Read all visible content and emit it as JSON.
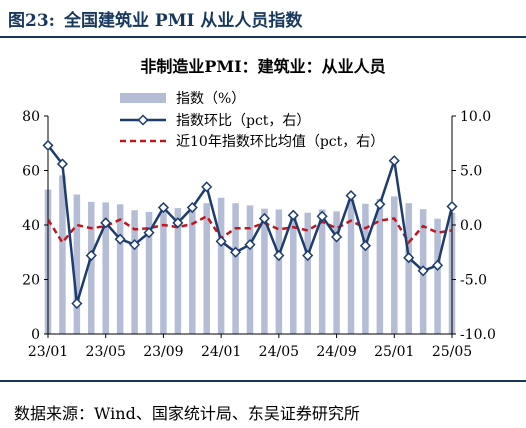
{
  "figure": {
    "number": "图23:",
    "title": "全国建筑业 PMI 从业人员指数",
    "source": "数据来源：Wind、国家统计局、东吴证券研究所"
  },
  "chart_data": {
    "type": "bar+line",
    "title": "非制造业PMI：建筑业：从业人员",
    "categories": [
      "23/01",
      "23/02",
      "23/03",
      "23/04",
      "23/05",
      "23/06",
      "23/07",
      "23/08",
      "23/09",
      "23/10",
      "23/11",
      "23/12",
      "24/01",
      "24/02",
      "24/03",
      "24/04",
      "24/05",
      "24/06",
      "24/07",
      "24/08",
      "24/09",
      "24/10",
      "24/11",
      "24/12",
      "25/01",
      "25/02",
      "25/03",
      "25/04",
      "25/05"
    ],
    "x_tick_labels": [
      "23/01",
      "23/05",
      "23/09",
      "24/01",
      "24/05",
      "24/09",
      "25/01",
      "25/05"
    ],
    "left_axis": {
      "range": [
        0,
        80
      ],
      "ticks": [
        "0",
        "20",
        "40",
        "60",
        "80"
      ]
    },
    "right_axis": {
      "range": [
        -10,
        10
      ],
      "ticks": [
        "-10.0",
        "-5.0",
        "0.0",
        "5.0",
        "10.0"
      ]
    },
    "series": [
      {
        "name": "指数（%）",
        "kind": "bar",
        "axis": "left",
        "color": "#b4bcd6",
        "values": [
          53.0,
          58.2,
          51.2,
          48.5,
          48.3,
          47.6,
          45.4,
          44.8,
          47.5,
          46.2,
          46.0,
          48.0,
          50.0,
          48.0,
          47.2,
          46.0,
          45.7,
          43.4,
          44.5,
          45.7,
          45.0,
          49.2,
          47.8,
          49.6,
          50.5,
          48.0,
          45.8,
          42.3,
          44.5
        ]
      },
      {
        "name": "指数环比（pct，右）",
        "kind": "line",
        "axis": "right",
        "color": "#1f3c6e",
        "values": [
          7.3,
          5.6,
          -7.2,
          -2.8,
          0.2,
          -1.3,
          -1.8,
          -0.7,
          1.6,
          0.2,
          1.6,
          3.5,
          -1.5,
          -2.5,
          -1.8,
          0.6,
          -2.8,
          0.9,
          -2.8,
          0.8,
          -1.1,
          2.7,
          -1.9,
          1.9,
          5.9,
          -3.0,
          -4.2,
          -3.7,
          1.7
        ]
      },
      {
        "name": "近10年指数环比均值（pct，右）",
        "kind": "dashed-line",
        "axis": "right",
        "color": "#c0171f",
        "values": [
          0.5,
          -1.6,
          0.0,
          -0.3,
          -0.1,
          0.5,
          -0.4,
          -0.3,
          0.0,
          -0.2,
          0.1,
          0.8,
          -1.2,
          -0.3,
          -0.3,
          0.2,
          -0.4,
          -0.2,
          -0.5,
          0.3,
          -0.3,
          0.4,
          -0.3,
          0.4,
          0.6,
          -1.6,
          -0.1,
          -0.7,
          -0.5
        ]
      }
    ],
    "legend_position": "top-center",
    "grid": false
  }
}
